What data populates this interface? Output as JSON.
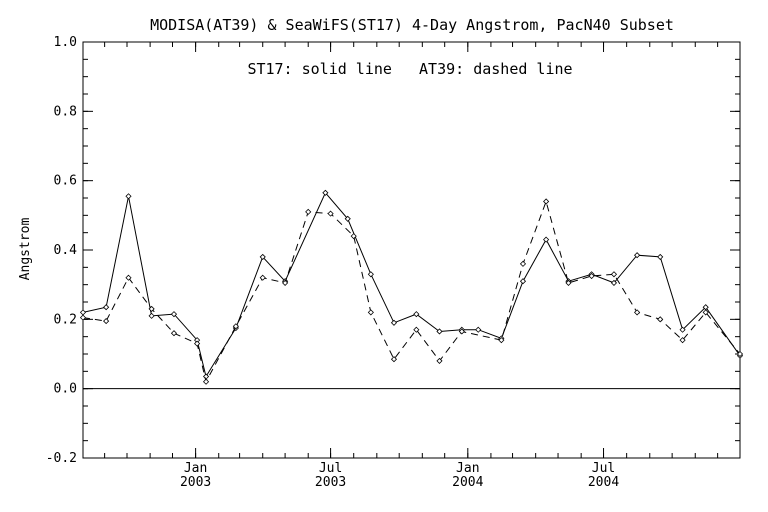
{
  "chart_data": {
    "type": "line",
    "title": "MODISA(AT39) & SeaWiFS(ST17) 4-Day Angstrom, PacN40 Subset",
    "annotation": "ST17: solid line   AT39: dashed line",
    "xlabel": "",
    "ylabel": "Angstrom",
    "xlim": [
      "2002-08-03",
      "2004-12-31"
    ],
    "ylim": [
      -0.2,
      1.0
    ],
    "yticks": [
      "-0.2",
      "0.0",
      "0.2",
      "0.4",
      "0.6",
      "0.8",
      "1.0"
    ],
    "xticks": [
      {
        "date": "2003-01-01",
        "month": "Jan",
        "year": "2003"
      },
      {
        "date": "2003-07-01",
        "month": "Jul",
        "year": "2003"
      },
      {
        "date": "2004-01-01",
        "month": "Jan",
        "year": "2004"
      },
      {
        "date": "2004-07-01",
        "month": "Jul",
        "year": "2004"
      }
    ],
    "zero_line": 0,
    "grid": false,
    "series": [
      {
        "name": "ST17",
        "style": "solid",
        "points": [
          [
            "2002-08-03",
            0.22
          ],
          [
            "2002-09-03",
            0.235
          ],
          [
            "2002-10-03",
            0.555
          ],
          [
            "2002-11-03",
            0.21
          ],
          [
            "2002-12-03",
            0.215
          ],
          [
            "2003-01-03",
            0.14
          ],
          [
            "2003-01-15",
            0.035
          ],
          [
            "2003-02-24",
            0.175
          ],
          [
            "2003-04-01",
            0.38
          ],
          [
            "2003-05-01",
            0.31
          ],
          [
            "2003-06-24",
            0.565
          ],
          [
            "2003-07-24",
            0.49
          ],
          [
            "2003-08-24",
            0.33
          ],
          [
            "2003-09-24",
            0.19
          ],
          [
            "2003-10-24",
            0.215
          ],
          [
            "2003-11-24",
            0.165
          ],
          [
            "2003-12-24",
            0.17
          ],
          [
            "2004-01-15",
            0.17
          ],
          [
            "2004-02-15",
            0.145
          ],
          [
            "2004-03-15",
            0.31
          ],
          [
            "2004-04-15",
            0.43
          ],
          [
            "2004-05-15",
            0.31
          ],
          [
            "2004-06-15",
            0.33
          ],
          [
            "2004-07-15",
            0.305
          ],
          [
            "2004-08-15",
            0.385
          ],
          [
            "2004-09-15",
            0.38
          ],
          [
            "2004-10-15",
            0.17
          ],
          [
            "2004-11-15",
            0.235
          ],
          [
            "2004-12-31",
            0.095
          ]
        ]
      },
      {
        "name": "AT39",
        "style": "dashed",
        "points": [
          [
            "2002-08-03",
            0.205
          ],
          [
            "2002-09-03",
            0.195
          ],
          [
            "2002-10-03",
            0.32
          ],
          [
            "2002-11-03",
            0.23
          ],
          [
            "2002-12-03",
            0.16
          ],
          [
            "2003-01-03",
            0.13
          ],
          [
            "2003-01-15",
            0.02
          ],
          [
            "2003-02-24",
            0.18
          ],
          [
            "2003-04-01",
            0.32
          ],
          [
            "2003-05-01",
            0.305
          ],
          [
            "2003-06-01",
            0.51
          ],
          [
            "2003-07-01",
            0.505
          ],
          [
            "2003-08-01",
            0.44
          ],
          [
            "2003-08-24",
            0.22
          ],
          [
            "2003-09-24",
            0.085
          ],
          [
            "2003-10-24",
            0.17
          ],
          [
            "2003-11-24",
            0.08
          ],
          [
            "2003-12-24",
            0.165
          ],
          [
            "2004-02-15",
            0.14
          ],
          [
            "2004-03-15",
            0.36
          ],
          [
            "2004-04-15",
            0.54
          ],
          [
            "2004-05-15",
            0.305
          ],
          [
            "2004-06-15",
            0.325
          ],
          [
            "2004-07-15",
            0.33
          ],
          [
            "2004-08-15",
            0.22
          ],
          [
            "2004-09-15",
            0.2
          ],
          [
            "2004-10-15",
            0.14
          ],
          [
            "2004-11-15",
            0.22
          ],
          [
            "2004-12-31",
            0.1
          ]
        ]
      }
    ]
  }
}
